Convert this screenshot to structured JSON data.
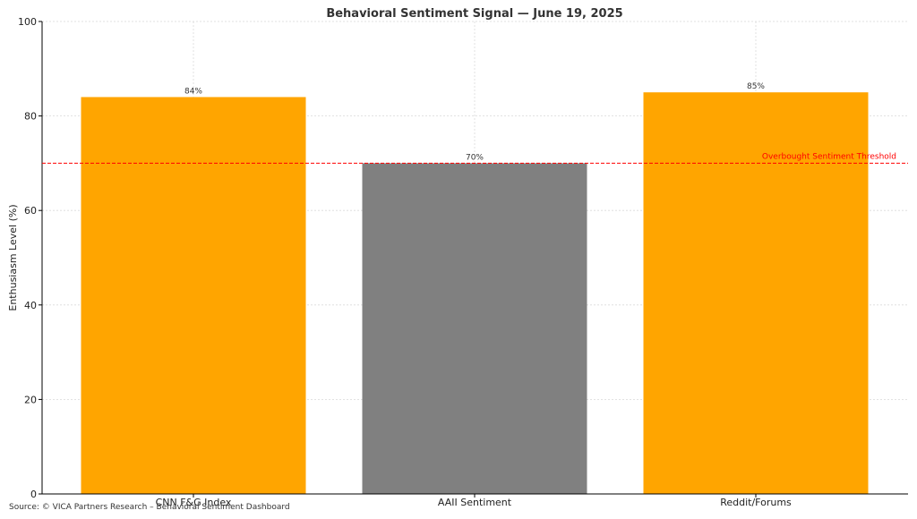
{
  "chart_data": {
    "type": "bar",
    "title": "Behavioral Sentiment Signal — June 19, 2025",
    "xlabel": "",
    "ylabel": "Enthusiasm Level (%)",
    "ylim": [
      0,
      100
    ],
    "yticks": [
      0,
      20,
      40,
      60,
      80,
      100
    ],
    "categories": [
      "CNN F&G Index",
      "AAII Sentiment",
      "Reddit/Forums"
    ],
    "values": [
      84,
      70,
      85
    ],
    "value_labels": [
      "84%",
      "70%",
      "85%"
    ],
    "bar_colors": [
      "#FFA500",
      "#808080",
      "#FFA500"
    ],
    "grid": true,
    "threshold": {
      "value": 70,
      "label": "Overbought Sentiment Threshold",
      "color": "#ff0000",
      "style": "dashed"
    }
  },
  "source_note": "Source: © VICA Partners Research – Behavioral Sentiment Dashboard"
}
